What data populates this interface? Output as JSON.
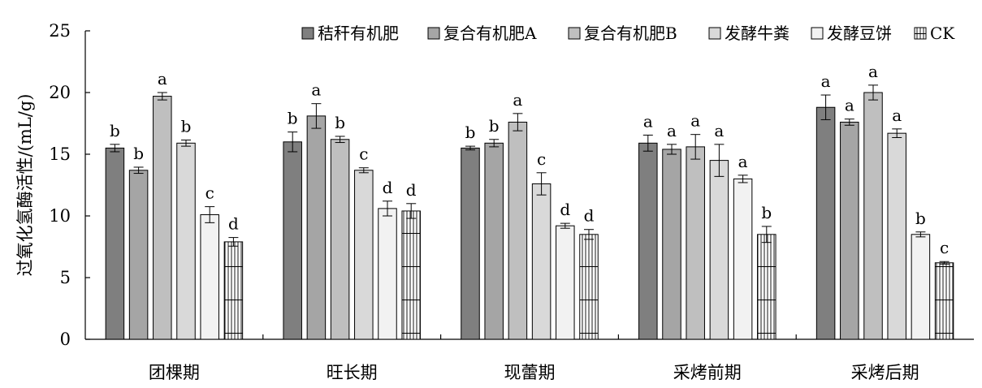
{
  "chart_data": {
    "type": "bar",
    "title": "",
    "xlabel": "",
    "ylabel": "过氧化氢酶活性/(mL/g)",
    "ylim": [
      0,
      25
    ],
    "yticks": [
      0,
      5,
      10,
      15,
      20,
      25
    ],
    "grid": false,
    "legend_position": "top-right",
    "categories": [
      "团棵期",
      "旺长期",
      "现蕾期",
      "采烤前期",
      "采烤后期"
    ],
    "series": [
      {
        "name": "秸秆有机肥",
        "fill": "#7f7f7f",
        "pattern": "solid",
        "values": [
          15.5,
          16.0,
          15.5,
          15.9,
          18.8
        ],
        "errors": [
          0.3,
          0.8,
          0.15,
          0.65,
          1.0
        ],
        "letters": [
          "b",
          "b",
          "b",
          "a",
          "a"
        ]
      },
      {
        "name": "复合有机肥A",
        "fill": "#a5a5a5",
        "pattern": "solid",
        "values": [
          13.7,
          18.1,
          15.9,
          15.4,
          17.6
        ],
        "errors": [
          0.25,
          1.0,
          0.3,
          0.4,
          0.25
        ],
        "letters": [
          "b",
          "a",
          "b",
          "a",
          "a"
        ]
      },
      {
        "name": "复合有机肥B",
        "fill": "#bfbfbf",
        "pattern": "solid",
        "values": [
          19.7,
          16.2,
          17.6,
          15.6,
          20.0
        ],
        "errors": [
          0.3,
          0.25,
          0.7,
          1.0,
          0.6
        ],
        "letters": [
          "a",
          "b",
          "a",
          "a",
          "a"
        ]
      },
      {
        "name": "发酵牛粪",
        "fill": "#d9d9d9",
        "pattern": "solid",
        "values": [
          15.9,
          13.7,
          12.6,
          14.5,
          16.7
        ],
        "errors": [
          0.25,
          0.2,
          0.9,
          1.3,
          0.35
        ],
        "letters": [
          "b",
          "c",
          "c",
          "a",
          "a"
        ]
      },
      {
        "name": "发酵豆饼",
        "fill": "#f2f2f2",
        "pattern": "solid",
        "values": [
          10.1,
          10.6,
          9.2,
          13.0,
          8.5
        ],
        "errors": [
          0.65,
          0.6,
          0.2,
          0.3,
          0.2
        ],
        "letters": [
          "c",
          "d",
          "d",
          "a",
          "b"
        ]
      },
      {
        "name": "CK",
        "fill": "#ffffff",
        "pattern": "grid",
        "values": [
          7.9,
          10.4,
          8.5,
          8.5,
          6.2
        ],
        "errors": [
          0.35,
          0.6,
          0.4,
          0.65,
          0.1
        ],
        "letters": [
          "d",
          "d",
          "d",
          "b",
          "c"
        ]
      }
    ]
  }
}
